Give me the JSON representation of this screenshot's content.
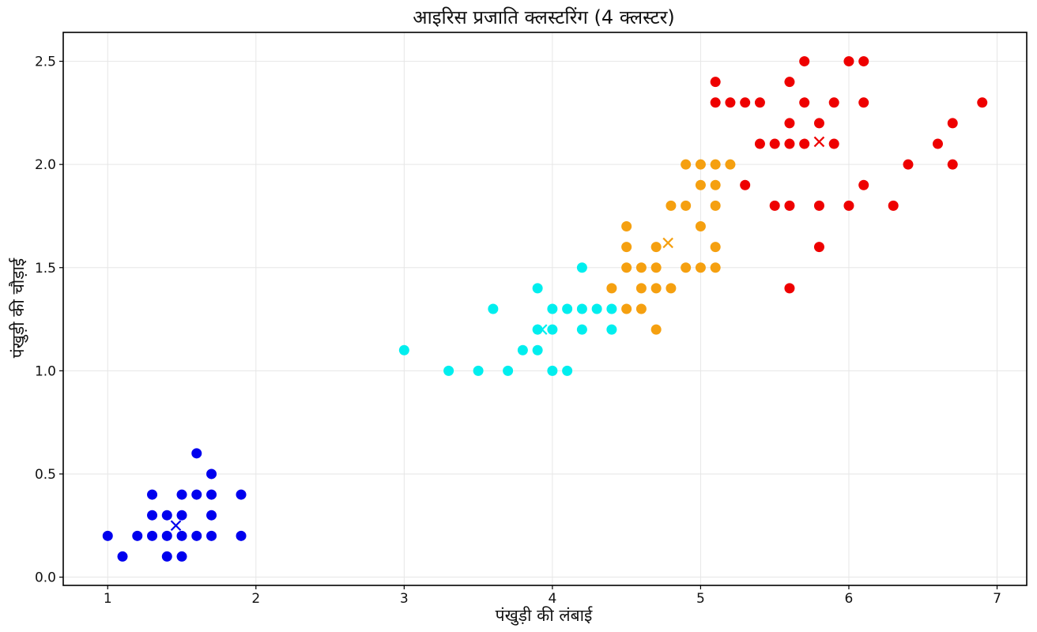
{
  "chart_data": {
    "type": "scatter",
    "title": "आइरिस प्रजाति क्लस्टरिंग (4 क्लस्टर)",
    "xlabel": "पंखुड़ी की लंबाई",
    "ylabel": "पंखुड़ी की चौड़ाई",
    "xlim": [
      0.7,
      7.2
    ],
    "ylim": [
      -0.04,
      2.64
    ],
    "xticks": [
      1,
      2,
      3,
      4,
      5,
      6,
      7
    ],
    "yticks": [
      0.0,
      0.5,
      1.0,
      1.5,
      2.0,
      2.5
    ],
    "xtick_labels": [
      "1",
      "2",
      "3",
      "4",
      "5",
      "6",
      "7"
    ],
    "ytick_labels": [
      "0.0",
      "0.5",
      "1.0",
      "1.5",
      "2.0",
      "2.5"
    ],
    "grid": true,
    "legend": "none",
    "series": [
      {
        "color": "#0000ee",
        "points": [
          [
            1.0,
            0.2
          ],
          [
            1.1,
            0.1
          ],
          [
            1.2,
            0.2
          ],
          [
            1.3,
            0.2
          ],
          [
            1.3,
            0.3
          ],
          [
            1.3,
            0.4
          ],
          [
            1.4,
            0.1
          ],
          [
            1.4,
            0.2
          ],
          [
            1.4,
            0.3
          ],
          [
            1.5,
            0.1
          ],
          [
            1.5,
            0.2
          ],
          [
            1.5,
            0.3
          ],
          [
            1.5,
            0.4
          ],
          [
            1.6,
            0.2
          ],
          [
            1.6,
            0.4
          ],
          [
            1.6,
            0.6
          ],
          [
            1.7,
            0.2
          ],
          [
            1.7,
            0.3
          ],
          [
            1.7,
            0.4
          ],
          [
            1.7,
            0.5
          ],
          [
            1.9,
            0.2
          ],
          [
            1.9,
            0.4
          ]
        ],
        "centroid": [
          1.46,
          0.25
        ]
      },
      {
        "color": "#00eeee",
        "points": [
          [
            3.0,
            1.1
          ],
          [
            3.3,
            1.0
          ],
          [
            3.5,
            1.0
          ],
          [
            3.6,
            1.3
          ],
          [
            3.7,
            1.0
          ],
          [
            3.8,
            1.1
          ],
          [
            3.9,
            1.1
          ],
          [
            3.9,
            1.2
          ],
          [
            3.9,
            1.4
          ],
          [
            4.0,
            1.0
          ],
          [
            4.0,
            1.2
          ],
          [
            4.0,
            1.3
          ],
          [
            4.1,
            1.0
          ],
          [
            4.1,
            1.3
          ],
          [
            4.2,
            1.2
          ],
          [
            4.2,
            1.3
          ],
          [
            4.2,
            1.5
          ],
          [
            4.3,
            1.3
          ],
          [
            4.4,
            1.2
          ],
          [
            4.4,
            1.3
          ]
        ],
        "centroid": [
          3.93,
          1.2
        ]
      },
      {
        "color": "#f5a010",
        "points": [
          [
            4.4,
            1.4
          ],
          [
            4.5,
            1.3
          ],
          [
            4.5,
            1.5
          ],
          [
            4.5,
            1.6
          ],
          [
            4.5,
            1.7
          ],
          [
            4.6,
            1.3
          ],
          [
            4.6,
            1.4
          ],
          [
            4.6,
            1.5
          ],
          [
            4.7,
            1.2
          ],
          [
            4.7,
            1.4
          ],
          [
            4.7,
            1.5
          ],
          [
            4.7,
            1.6
          ],
          [
            4.8,
            1.4
          ],
          [
            4.8,
            1.8
          ],
          [
            4.9,
            1.5
          ],
          [
            4.9,
            1.8
          ],
          [
            4.9,
            2.0
          ],
          [
            5.0,
            1.5
          ],
          [
            5.0,
            1.7
          ],
          [
            5.0,
            1.9
          ],
          [
            5.0,
            2.0
          ],
          [
            5.1,
            1.5
          ],
          [
            5.1,
            1.6
          ],
          [
            5.1,
            1.8
          ],
          [
            5.1,
            1.9
          ],
          [
            5.1,
            2.0
          ],
          [
            5.2,
            2.0
          ]
        ],
        "centroid": [
          4.78,
          1.62
        ]
      },
      {
        "color": "#ee0000",
        "points": [
          [
            5.1,
            2.3
          ],
          [
            5.1,
            2.4
          ],
          [
            5.2,
            2.3
          ],
          [
            5.3,
            1.9
          ],
          [
            5.3,
            2.3
          ],
          [
            5.4,
            2.1
          ],
          [
            5.4,
            2.3
          ],
          [
            5.5,
            1.8
          ],
          [
            5.5,
            2.1
          ],
          [
            5.6,
            1.4
          ],
          [
            5.6,
            1.8
          ],
          [
            5.6,
            2.1
          ],
          [
            5.6,
            2.2
          ],
          [
            5.6,
            2.4
          ],
          [
            5.7,
            2.1
          ],
          [
            5.7,
            2.3
          ],
          [
            5.7,
            2.5
          ],
          [
            5.8,
            1.6
          ],
          [
            5.8,
            1.8
          ],
          [
            5.8,
            2.2
          ],
          [
            5.9,
            2.1
          ],
          [
            5.9,
            2.3
          ],
          [
            6.0,
            1.8
          ],
          [
            6.0,
            2.5
          ],
          [
            6.1,
            1.9
          ],
          [
            6.1,
            2.3
          ],
          [
            6.1,
            2.5
          ],
          [
            6.3,
            1.8
          ],
          [
            6.4,
            2.0
          ],
          [
            6.6,
            2.1
          ],
          [
            6.7,
            2.0
          ],
          [
            6.7,
            2.2
          ],
          [
            6.9,
            2.3
          ]
        ],
        "centroid": [
          5.8,
          2.11
        ]
      }
    ]
  }
}
